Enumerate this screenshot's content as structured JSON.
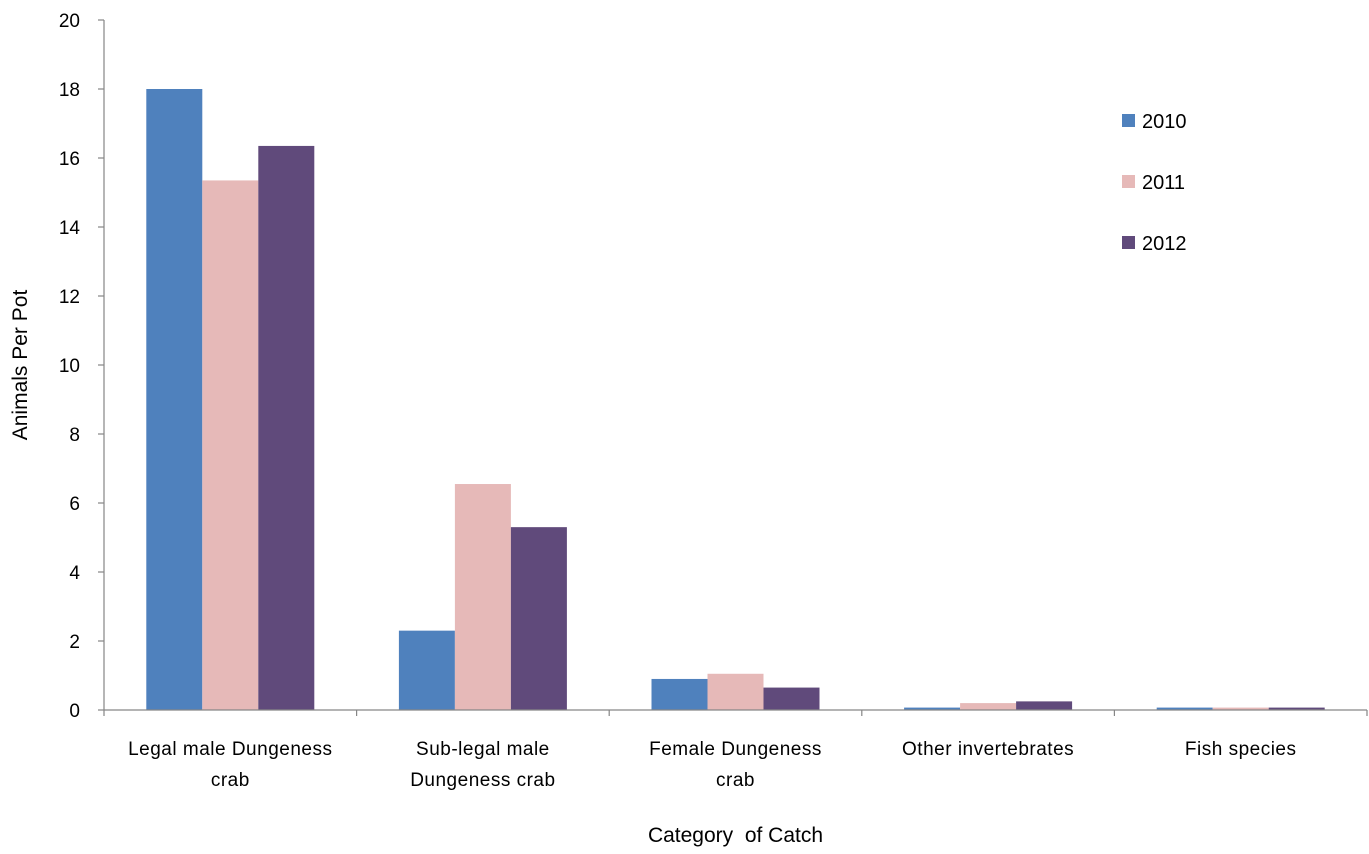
{
  "chart_data": {
    "type": "bar",
    "title": "",
    "xlabel": "Category  of Catch",
    "ylabel": "Animals Per Pot",
    "ylim": [
      0,
      20
    ],
    "yticks": [
      "0",
      "2",
      "4",
      "6",
      "8",
      "10",
      "12",
      "14",
      "16",
      "18",
      "20"
    ],
    "grid": false,
    "legend_position": "top-right",
    "categories": [
      [
        "Legal male Dungeness",
        "crab"
      ],
      [
        "Sub-legal male",
        "Dungeness crab"
      ],
      [
        "Female Dungeness",
        "crab"
      ],
      [
        "Other invertebrates"
      ],
      [
        "Fish species"
      ]
    ],
    "series": [
      {
        "name": "2010",
        "color": "#4f81bd",
        "values": [
          18.0,
          2.3,
          0.9,
          0.07,
          0.07
        ]
      },
      {
        "name": "2011",
        "color": "#e6b9b8",
        "values": [
          15.35,
          6.55,
          1.05,
          0.2,
          0.07
        ]
      },
      {
        "name": "2012",
        "color": "#604a7b",
        "values": [
          16.35,
          5.3,
          0.65,
          0.25,
          0.07
        ]
      }
    ]
  }
}
